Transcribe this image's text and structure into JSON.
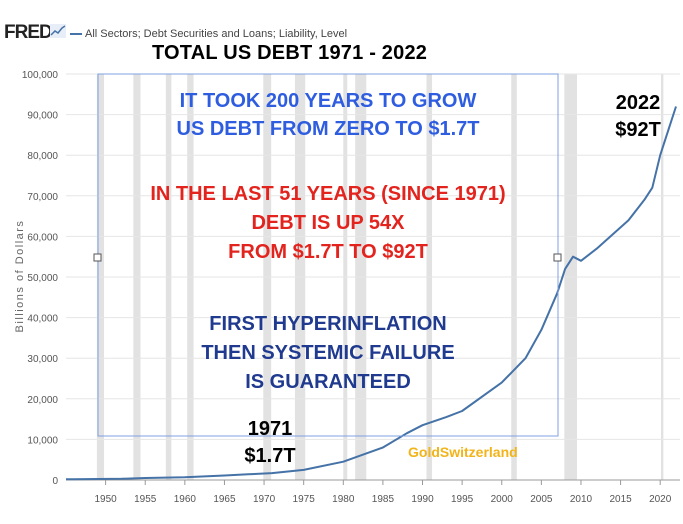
{
  "header": {
    "logo": "FRED",
    "series_label": "All Sectors; Debt Securities and Loans; Liability, Level"
  },
  "chart_data": {
    "type": "line",
    "title": "TOTAL US DEBT 1971 - 2022",
    "ylabel": "Billions of Dollars",
    "xlabel": "",
    "ylim": [
      0,
      100000
    ],
    "xlim": [
      1945,
      2022.5
    ],
    "yticks": [
      0,
      10000,
      20000,
      30000,
      40000,
      50000,
      60000,
      70000,
      80000,
      90000,
      100000
    ],
    "ytick_labels": [
      "0",
      "10,000",
      "20,000",
      "30,000",
      "40,000",
      "50,000",
      "60,000",
      "70,000",
      "80,000",
      "90,000",
      "100,000"
    ],
    "xticks": [
      1950,
      1955,
      1960,
      1965,
      1970,
      1975,
      1980,
      1985,
      1990,
      1995,
      2000,
      2005,
      2010,
      2015,
      2020
    ],
    "recessions": [
      [
        1948.9,
        1949.8
      ],
      [
        1953.5,
        1954.4
      ],
      [
        1957.6,
        1958.3
      ],
      [
        1960.3,
        1961.1
      ],
      [
        1969.9,
        1970.9
      ],
      [
        1973.9,
        1975.2
      ],
      [
        1980.0,
        1980.5
      ],
      [
        1981.5,
        1982.9
      ],
      [
        1990.5,
        1991.2
      ],
      [
        2001.2,
        2001.9
      ],
      [
        2007.9,
        2009.5
      ],
      [
        2020.1,
        2020.4
      ]
    ],
    "series": [
      {
        "color": "#4572a7",
        "x": [
          1945,
          1946,
          1952,
          1955,
          1960,
          1965,
          1968,
          1971,
          1975,
          1980,
          1985,
          1988,
          1990,
          1993,
          1995,
          2000,
          2003,
          2005,
          2007,
          2008,
          2009,
          2010,
          2012,
          2014,
          2016,
          2018,
          2019,
          2020,
          2021,
          2022
        ],
        "y": [
          200,
          200,
          300,
          500,
          700,
          1100,
          1400,
          1700,
          2500,
          4500,
          8000,
          11500,
          13500,
          15500,
          17000,
          24000,
          30000,
          37000,
          46000,
          52000,
          55000,
          54000,
          57000,
          60500,
          64000,
          69000,
          72000,
          80000,
          86000,
          92000
        ]
      }
    ],
    "annotations": {
      "end_year": "2022",
      "end_value": "$92T",
      "start_year": "1971",
      "start_value": "$1.7T"
    }
  },
  "overlay": {
    "blue_lines": [
      "IT TOOK 200 YEARS TO GROW",
      "US DEBT FROM ZERO TO $1.7T"
    ],
    "red_lines": [
      "IN THE LAST 51 YEARS (SINCE 1971)",
      "DEBT IS UP 54X",
      "FROM $1.7T TO $92T"
    ],
    "navy_lines": [
      "FIRST HYPERINFLATION",
      "THEN SYSTEMIC FAILURE",
      "IS GUARANTEED"
    ]
  },
  "watermark": "GoldSwitzerland",
  "colors": {
    "line": "#4572a7",
    "recession": "#e2e2e2",
    "grid": "#e6e6e6",
    "selection_box": "#7fa0e0",
    "blue_text": "#2f5de0",
    "red_text": "#e3231d",
    "navy_text": "#1f3a8f",
    "watermark": "#f2b418"
  }
}
